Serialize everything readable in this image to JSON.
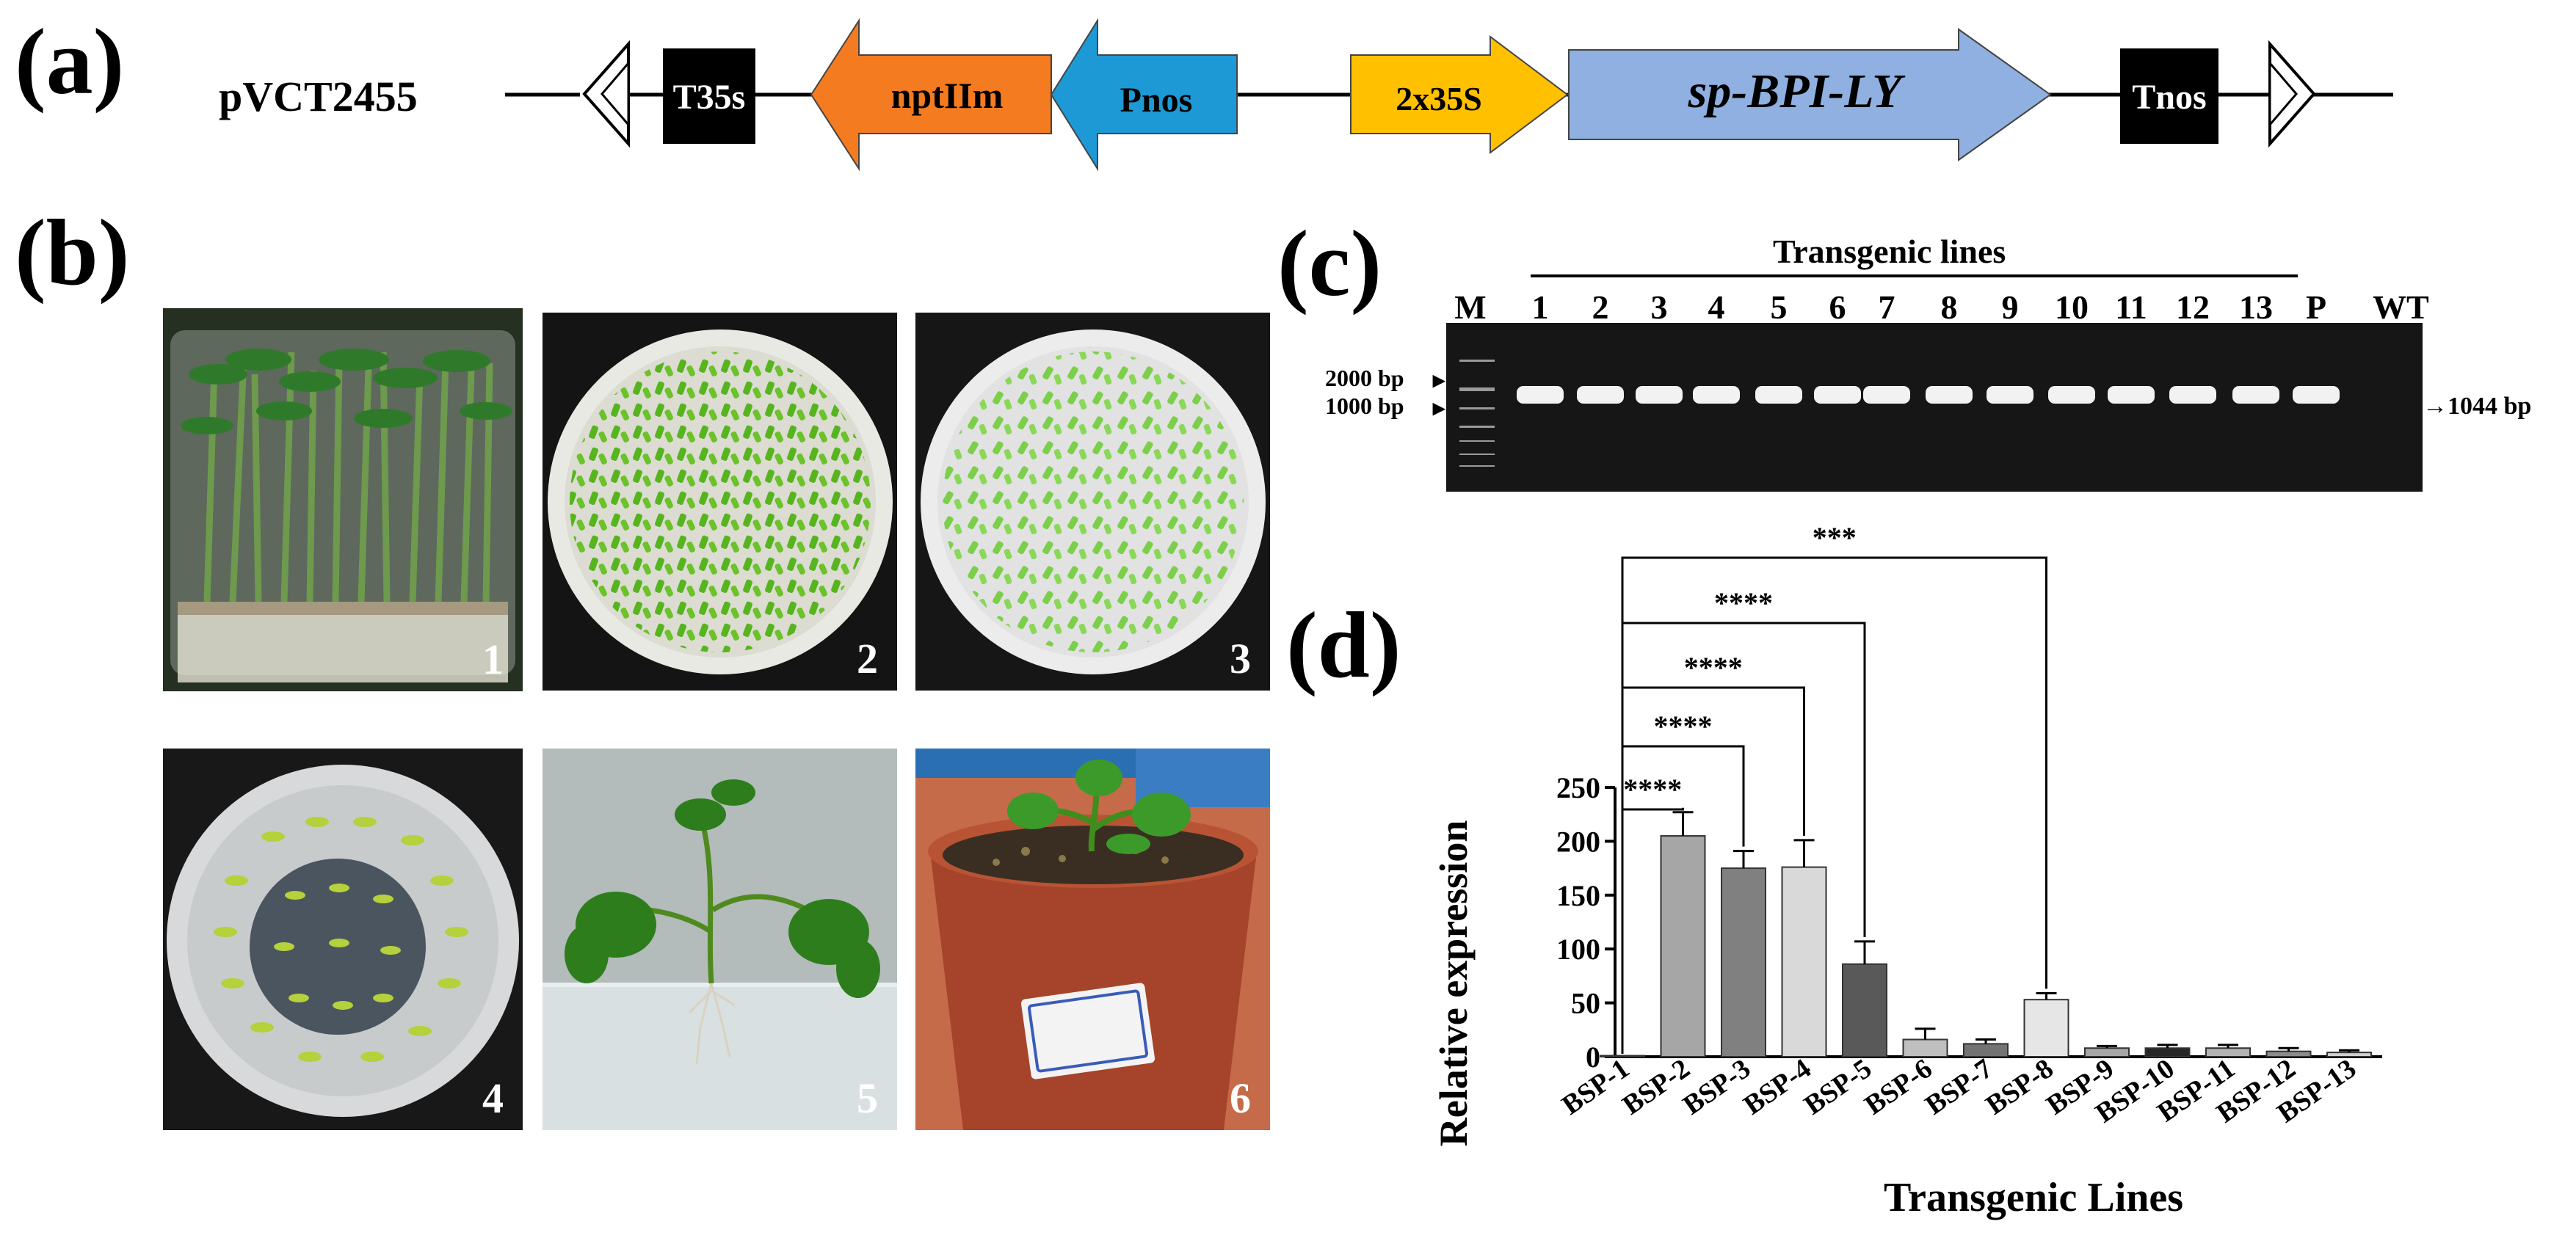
{
  "panel_a": {
    "label": "(a)",
    "plasmid": "pVCT2455",
    "elements": [
      {
        "name": "T35s",
        "color": "#000000",
        "text_color": "#ffffff"
      },
      {
        "name": "nptIIm",
        "color": "#f47b20",
        "text_color": "#000000"
      },
      {
        "name": "Pnos",
        "color": "#1d9ad6",
        "text_color": "#000000"
      },
      {
        "name": "2x35S",
        "color": "#ffc000",
        "text_color": "#000000"
      },
      {
        "name": "sp-BPI-LY",
        "color": "#8fb0e0",
        "text_color": "#000000"
      },
      {
        "name": "Tnos",
        "color": "#000000",
        "text_color": "#ffffff"
      }
    ]
  },
  "panel_b": {
    "label": "(b)",
    "photos": [
      {
        "number": "1",
        "subject": "seedlings in culture jar"
      },
      {
        "number": "2",
        "subject": "cotyledon explants on plate"
      },
      {
        "number": "3",
        "subject": "explants on selection plate"
      },
      {
        "number": "4",
        "subject": "regenerating explants in dish"
      },
      {
        "number": "5",
        "subject": "rooted shoot in jar"
      },
      {
        "number": "6",
        "subject": "plantlet in soil pot"
      }
    ]
  },
  "panel_c": {
    "label": "(c)",
    "group_label": "Transgenic lines",
    "lanes": [
      "M",
      "1",
      "2",
      "3",
      "4",
      "5",
      "6",
      "7",
      "8",
      "9",
      "10",
      "11",
      "12",
      "13",
      "P",
      "WT"
    ],
    "markers": [
      "2000 bp",
      "1000 bp"
    ],
    "band_label": "1044 bp"
  },
  "panel_d": {
    "label": "(d)",
    "chart_data": {
      "type": "bar",
      "categories": [
        "BSP-1",
        "BSP-2",
        "BSP-3",
        "BSP-4",
        "BSP-5",
        "BSP-6",
        "BSP-7",
        "BSP-8",
        "BSP-9",
        "BSP-10",
        "BSP-11",
        "BSP-12",
        "BSP-13"
      ],
      "values": [
        1,
        205,
        175,
        176,
        86,
        16,
        12,
        53,
        8,
        8,
        8,
        5,
        4
      ],
      "errors": [
        0,
        22,
        16,
        25,
        21,
        10,
        4,
        6,
        2,
        3,
        3,
        3,
        2
      ],
      "colors": [
        "#ffffff",
        "#a6a6a6",
        "#808080",
        "#d9d9d9",
        "#595959",
        "#bfbfbf",
        "#737373",
        "#e6e6e6",
        "#a6a6a6",
        "#262626",
        "#b3b3b3",
        "#8c8c8c",
        "#d0d0d0"
      ],
      "xlabel": "Transgenic Lines",
      "ylabel": "Relative expression",
      "ylim": [
        0,
        250
      ],
      "yticks": [
        0,
        50,
        100,
        150,
        200,
        250
      ],
      "significance": [
        {
          "from": 0,
          "to": 1,
          "label": "****"
        },
        {
          "from": 0,
          "to": 2,
          "label": "****"
        },
        {
          "from": 0,
          "to": 3,
          "label": "****"
        },
        {
          "from": 0,
          "to": 4,
          "label": "****"
        },
        {
          "from": 0,
          "to": 7,
          "label": "***"
        }
      ]
    }
  }
}
